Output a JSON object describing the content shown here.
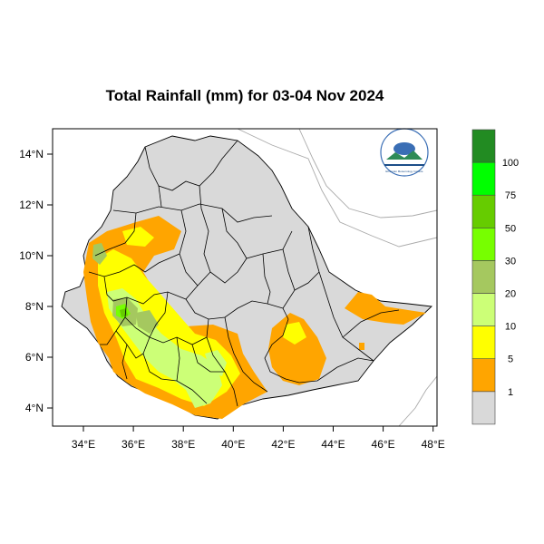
{
  "title": "Total Rainfall (mm) for 03-04 Nov 2024",
  "map": {
    "lon_ticks": [
      "34°E",
      "36°E",
      "38°E",
      "40°E",
      "42°E",
      "44°E",
      "46°E",
      "48°E"
    ],
    "lat_ticks": [
      "14°N",
      "12°N",
      "10°N",
      "8°N",
      "6°N",
      "4°N"
    ],
    "lon_range": [
      33.0,
      48.2
    ],
    "lat_range": [
      3.2,
      15.0
    ],
    "land_color": "#d9d9d9",
    "logo_label": "Ethiopian Meteorology Institute"
  },
  "colorbar": {
    "labels": [
      "1",
      "5",
      "10",
      "20",
      "30",
      "50",
      "75",
      "100"
    ],
    "colors": [
      "#d9d9d9",
      "#ffa500",
      "#ffff00",
      "#ccff77",
      "#a5c85f",
      "#77ff00",
      "#66cc00",
      "#00ff00",
      "#228b22"
    ]
  }
}
